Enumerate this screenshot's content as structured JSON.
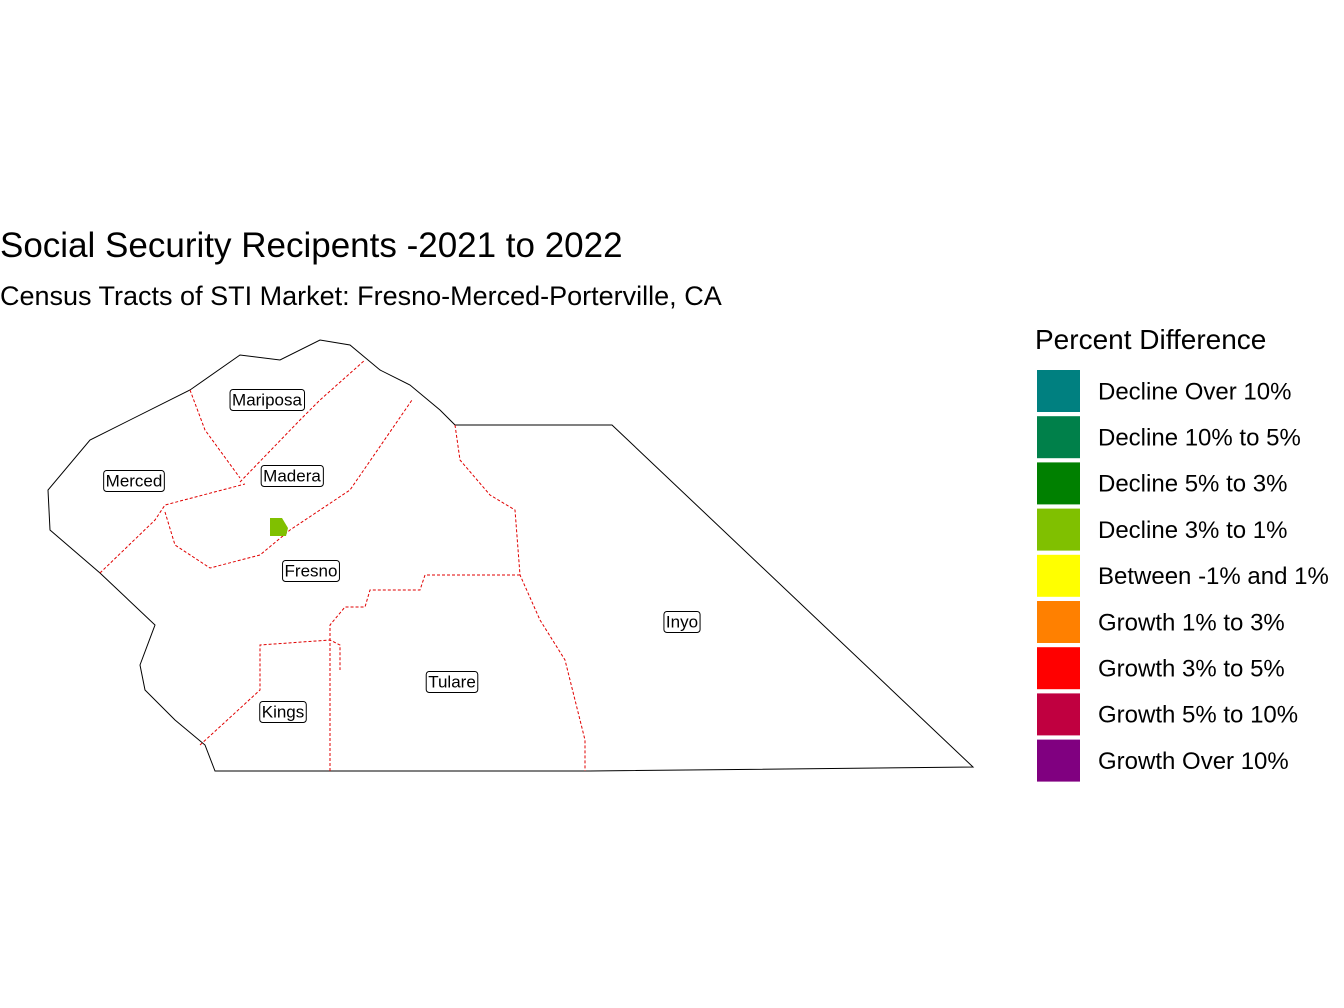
{
  "header": {
    "title": "Social Security Recipents -2021 to 2022",
    "subtitle": "Census Tracts of STI Market: Fresno-Merced-Porterville, CA"
  },
  "legend": {
    "title": "Percent Difference",
    "items": [
      {
        "label": "Decline Over 10%",
        "color": "#008080"
      },
      {
        "label": "Decline 10% to 5%",
        "color": "#00804a"
      },
      {
        "label": "Decline 5% to 3%",
        "color": "#008000"
      },
      {
        "label": "Decline 3% to 1%",
        "color": "#80c000"
      },
      {
        "label": "Between -1% and 1%",
        "color": "#ffff00"
      },
      {
        "label": "Growth 1% to 3%",
        "color": "#ff8000"
      },
      {
        "label": "Growth 3% to 5%",
        "color": "#ff0000"
      },
      {
        "label": "Growth 5% to 10%",
        "color": "#c00040"
      },
      {
        "label": "Growth Over 10%",
        "color": "#800080"
      }
    ]
  },
  "counties": [
    "Mariposa",
    "Madera",
    "Merced",
    "Fresno",
    "Inyo",
    "Tulare",
    "Kings"
  ]
}
